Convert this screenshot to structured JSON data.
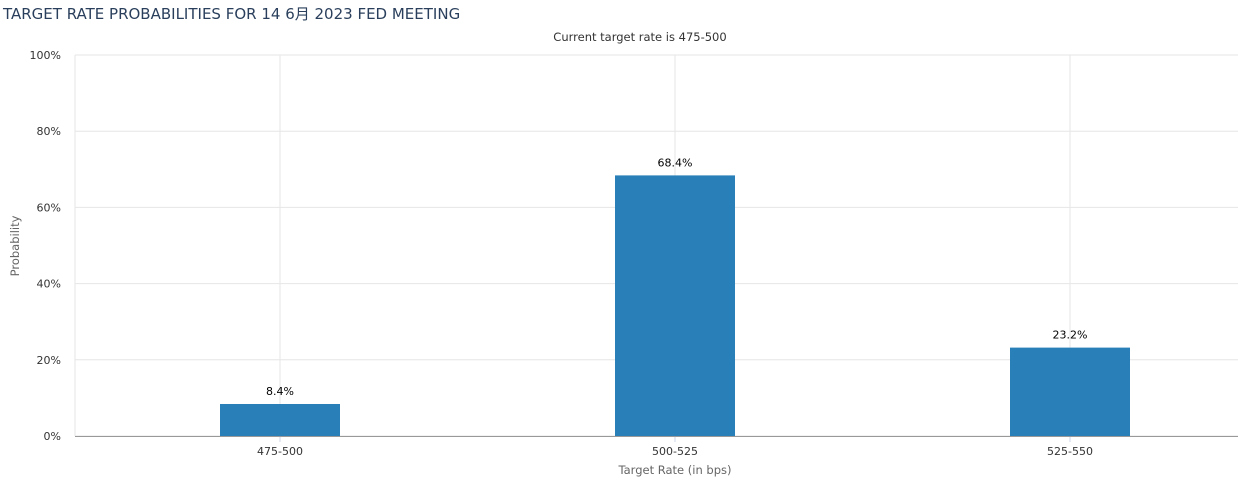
{
  "chart_data": {
    "type": "bar",
    "title": "TARGET RATE PROBABILITIES FOR 14 6月 2023 FED MEETING",
    "subtitle": "Current target rate is 475-500",
    "xlabel": "Target Rate (in bps)",
    "ylabel": "Probability",
    "categories": [
      "475-500",
      "500-525",
      "525-550"
    ],
    "values": [
      8.4,
      68.4,
      23.2
    ],
    "data_labels": [
      "8.4%",
      "68.4%",
      "23.2%"
    ],
    "ylim": [
      0,
      100
    ],
    "yticks": [
      "0%",
      "20%",
      "40%",
      "60%",
      "80%",
      "100%"
    ],
    "ytick_values": [
      0,
      20,
      40,
      60,
      80,
      100
    ],
    "grid": true,
    "bar_color": "#2980b9",
    "grid_color": "#e6e6e6"
  }
}
